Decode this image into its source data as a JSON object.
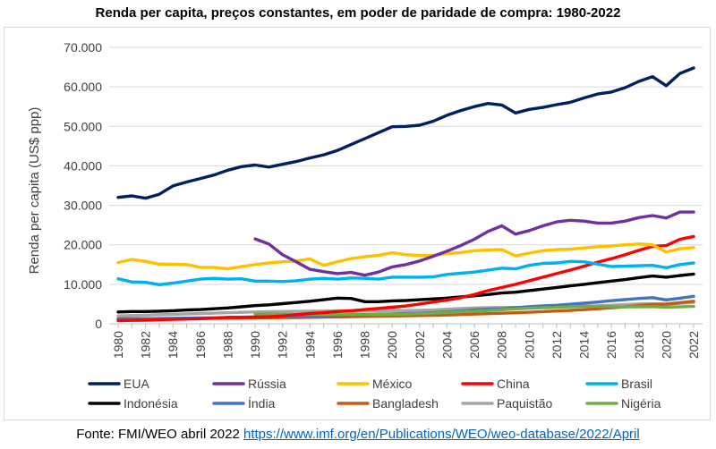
{
  "chart_data": {
    "type": "line",
    "title": "Renda per capita, preços constantes, em poder de paridade de compra: 1980-2022",
    "ylabel": "Renda per capita (US$ ppp)",
    "xlabel": "",
    "ylim": [
      0,
      70000
    ],
    "y_ticks": [
      "0",
      "10.000",
      "20.000",
      "30.000",
      "40.000",
      "50.000",
      "60.000",
      "70.000"
    ],
    "y_tick_values": [
      0,
      10000,
      20000,
      30000,
      40000,
      50000,
      60000,
      70000
    ],
    "x": [
      1980,
      1981,
      1982,
      1983,
      1984,
      1985,
      1986,
      1987,
      1988,
      1989,
      1990,
      1991,
      1992,
      1993,
      1994,
      1995,
      1996,
      1997,
      1998,
      1999,
      2000,
      2001,
      2002,
      2003,
      2004,
      2005,
      2006,
      2007,
      2008,
      2009,
      2010,
      2011,
      2012,
      2013,
      2014,
      2015,
      2016,
      2017,
      2018,
      2019,
      2020,
      2021,
      2022
    ],
    "x_ticks": [
      "1980",
      "1982",
      "1984",
      "1986",
      "1988",
      "1990",
      "1992",
      "1994",
      "1996",
      "1998",
      "2000",
      "2002",
      "2004",
      "2006",
      "2008",
      "2010",
      "2012",
      "2014",
      "2016",
      "2018",
      "2020",
      "2022"
    ],
    "grid": true,
    "legend_position": "bottom",
    "series": [
      {
        "name": "EUA",
        "color": "#002060",
        "values": [
          32000,
          32400,
          31800,
          32800,
          34900,
          35900,
          36800,
          37700,
          38900,
          39800,
          40200,
          39700,
          40400,
          41100,
          42000,
          42800,
          43900,
          45400,
          46900,
          48400,
          49900,
          50000,
          50300,
          51300,
          52800,
          54000,
          55000,
          55800,
          55400,
          53400,
          54300,
          54800,
          55500,
          56100,
          57200,
          58200,
          58700,
          59800,
          61400,
          62600,
          60300,
          63400,
          64800
        ]
      },
      {
        "name": "Rússia",
        "color": "#7030a0",
        "values": [
          null,
          null,
          null,
          null,
          null,
          null,
          null,
          null,
          null,
          null,
          21500,
          20200,
          17500,
          15700,
          13800,
          13200,
          12700,
          13000,
          12300,
          13100,
          14400,
          15000,
          15900,
          17100,
          18400,
          19800,
          21400,
          23400,
          24800,
          22700,
          23600,
          24800,
          25800,
          26200,
          26000,
          25500,
          25500,
          26000,
          26900,
          27400,
          26800,
          28300,
          28300
        ]
      },
      {
        "name": "México",
        "color": "#ffc000",
        "values": [
          15500,
          16300,
          15800,
          15100,
          15100,
          15000,
          14300,
          14300,
          13900,
          14500,
          15000,
          15400,
          15700,
          15900,
          16400,
          14800,
          15700,
          16500,
          17000,
          17300,
          18000,
          17500,
          17300,
          17300,
          17800,
          18000,
          18500,
          18700,
          18800,
          17200,
          17900,
          18500,
          18800,
          18900,
          19200,
          19500,
          19700,
          20000,
          20200,
          20000,
          18200,
          19000,
          19300
        ]
      },
      {
        "name": "China",
        "color": "#ff0000",
        "values": [
          800,
          850,
          900,
          1000,
          1100,
          1200,
          1300,
          1400,
          1600,
          1600,
          1700,
          1800,
          2000,
          2300,
          2600,
          2800,
          3100,
          3300,
          3600,
          3900,
          4200,
          4500,
          5000,
          5500,
          6000,
          6600,
          7400,
          8400,
          9200,
          10000,
          10900,
          11800,
          12700,
          13600,
          14600,
          15600,
          16500,
          17500,
          18600,
          19600,
          19800,
          21400,
          22100
        ]
      },
      {
        "name": "Brasil",
        "color": "#00b0f0",
        "values": [
          11400,
          10600,
          10500,
          9900,
          10300,
          10800,
          11300,
          11500,
          11300,
          11400,
          10800,
          10800,
          10700,
          10900,
          11300,
          11500,
          11300,
          11600,
          11500,
          11300,
          11800,
          11800,
          11800,
          11900,
          12500,
          12800,
          13100,
          13600,
          14100,
          13900,
          14800,
          15300,
          15400,
          15800,
          15700,
          15100,
          14500,
          14600,
          14700,
          14800,
          14200,
          15000,
          15400
        ]
      },
      {
        "name": "Indonésia",
        "color": "#000000",
        "values": [
          3000,
          3100,
          3100,
          3200,
          3300,
          3500,
          3600,
          3800,
          4000,
          4300,
          4600,
          4800,
          5100,
          5400,
          5700,
          6100,
          6500,
          6400,
          5600,
          5600,
          5800,
          5900,
          6100,
          6300,
          6500,
          6800,
          7100,
          7400,
          7800,
          8000,
          8400,
          8800,
          9200,
          9600,
          10000,
          10400,
          10800,
          11200,
          11700,
          12100,
          11800,
          12200,
          12600
        ]
      },
      {
        "name": "Índia",
        "color": "#4472c4",
        "values": [
          1200,
          1250,
          1280,
          1330,
          1380,
          1420,
          1470,
          1520,
          1620,
          1680,
          1750,
          1720,
          1780,
          1850,
          1950,
          2050,
          2150,
          2200,
          2300,
          2440,
          2500,
          2600,
          2680,
          2850,
          3020,
          3250,
          3480,
          3720,
          3780,
          4050,
          4350,
          4560,
          4700,
          4950,
          5200,
          5500,
          5840,
          6150,
          6420,
          6620,
          6050,
          6490,
          6950
        ]
      },
      {
        "name": "Bangladesh",
        "color": "#c55a11",
        "values": [
          1300,
          1300,
          1300,
          1320,
          1340,
          1360,
          1380,
          1400,
          1420,
          1440,
          1480,
          1510,
          1550,
          1590,
          1630,
          1680,
          1740,
          1790,
          1850,
          1900,
          1960,
          2020,
          2080,
          2150,
          2230,
          2330,
          2440,
          2560,
          2680,
          2790,
          2920,
          3070,
          3240,
          3400,
          3590,
          3800,
          4040,
          4300,
          4590,
          4900,
          5000,
          5350,
          5700
        ]
      },
      {
        "name": "Paquistão",
        "color": "#a5a5a5",
        "values": [
          2000,
          2100,
          2200,
          2300,
          2400,
          2500,
          2600,
          2700,
          2800,
          2900,
          3000,
          3050,
          3100,
          3150,
          3200,
          3250,
          3300,
          3250,
          3250,
          3300,
          3350,
          3350,
          3400,
          3500,
          3700,
          3850,
          4000,
          4100,
          4150,
          4150,
          4150,
          4200,
          4250,
          4350,
          4450,
          4550,
          4700,
          4850,
          5050,
          5050,
          4950,
          5200,
          5400
        ]
      },
      {
        "name": "Nigéria",
        "color": "#70ad47",
        "values": [
          null,
          null,
          null,
          null,
          null,
          null,
          null,
          null,
          null,
          null,
          2500,
          2500,
          2450,
          2400,
          2350,
          2350,
          2400,
          2400,
          2400,
          2350,
          2400,
          2450,
          2550,
          2700,
          2850,
          3050,
          3200,
          3350,
          3550,
          3750,
          3950,
          4050,
          4150,
          4300,
          4450,
          4450,
          4300,
          4300,
          4300,
          4350,
          4200,
          4300,
          4400
        ]
      }
    ]
  },
  "source": {
    "prefix": "Fonte: FMI/WEO abril 2022 ",
    "url": "https://www.imf.org/en/Publications/WEO/weo-database/2022/April"
  }
}
